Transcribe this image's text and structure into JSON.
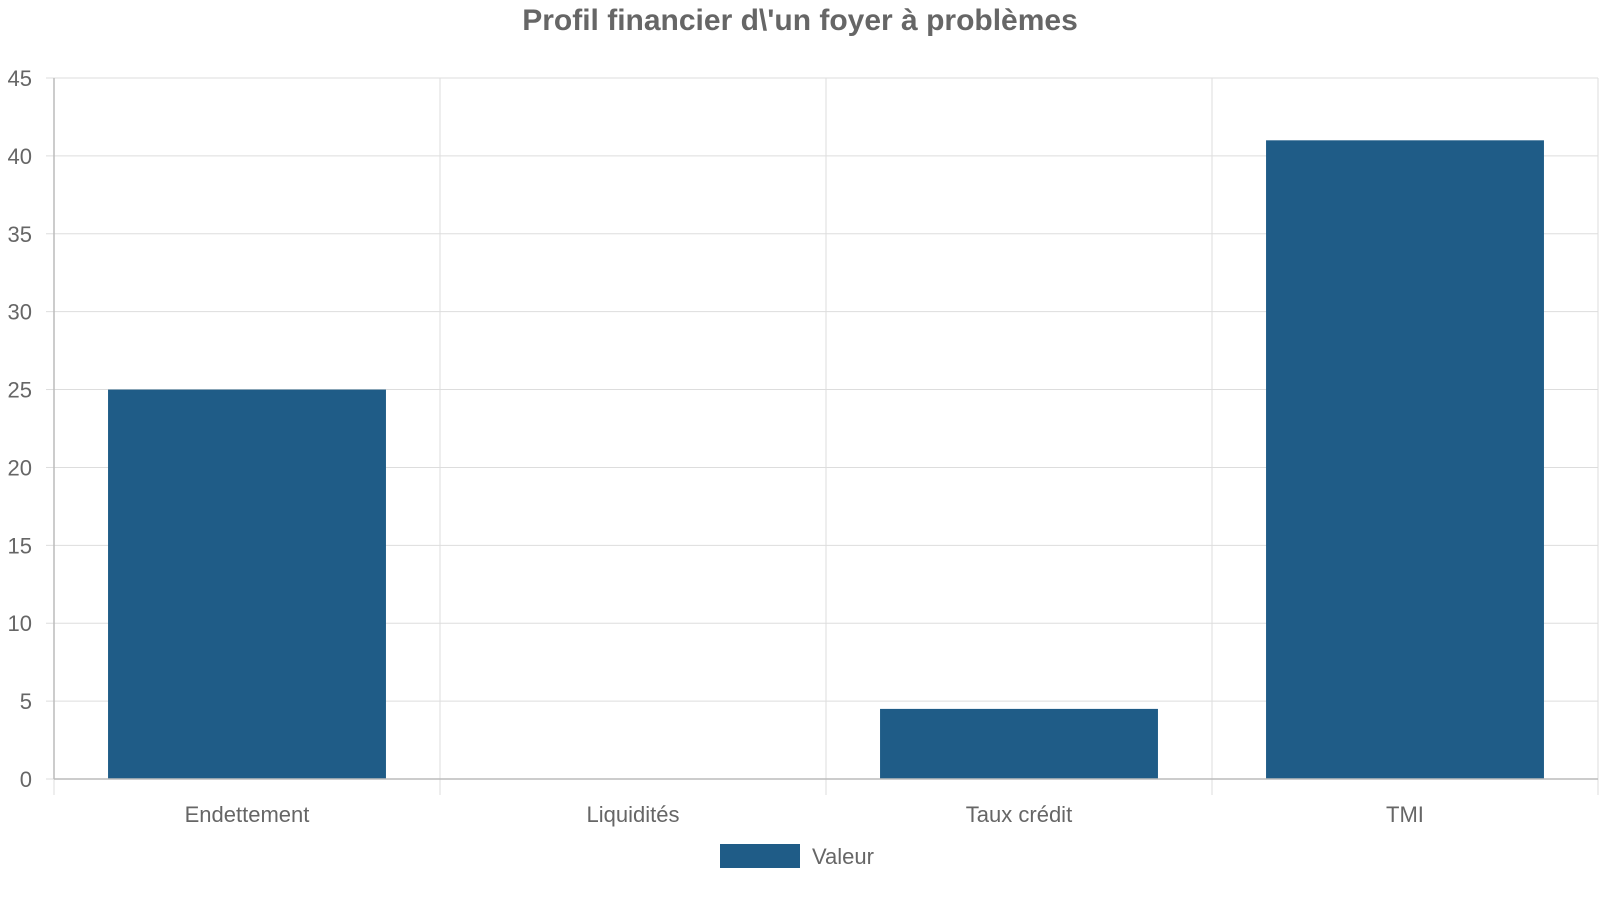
{
  "chart_data": {
    "type": "bar",
    "title": "Profil financier d\\'un foyer à problèmes",
    "categories": [
      "Endettement",
      "Liquidités",
      "Taux crédit",
      "TMI"
    ],
    "series": [
      {
        "name": "Valeur",
        "values": [
          25,
          0,
          4.5,
          41
        ],
        "color": "#1f5c87"
      }
    ],
    "ylim": [
      0,
      45
    ],
    "yticks": [
      0,
      5,
      10,
      15,
      20,
      25,
      30,
      35,
      40,
      45
    ],
    "grid": true,
    "legend_position": "bottom-center"
  }
}
